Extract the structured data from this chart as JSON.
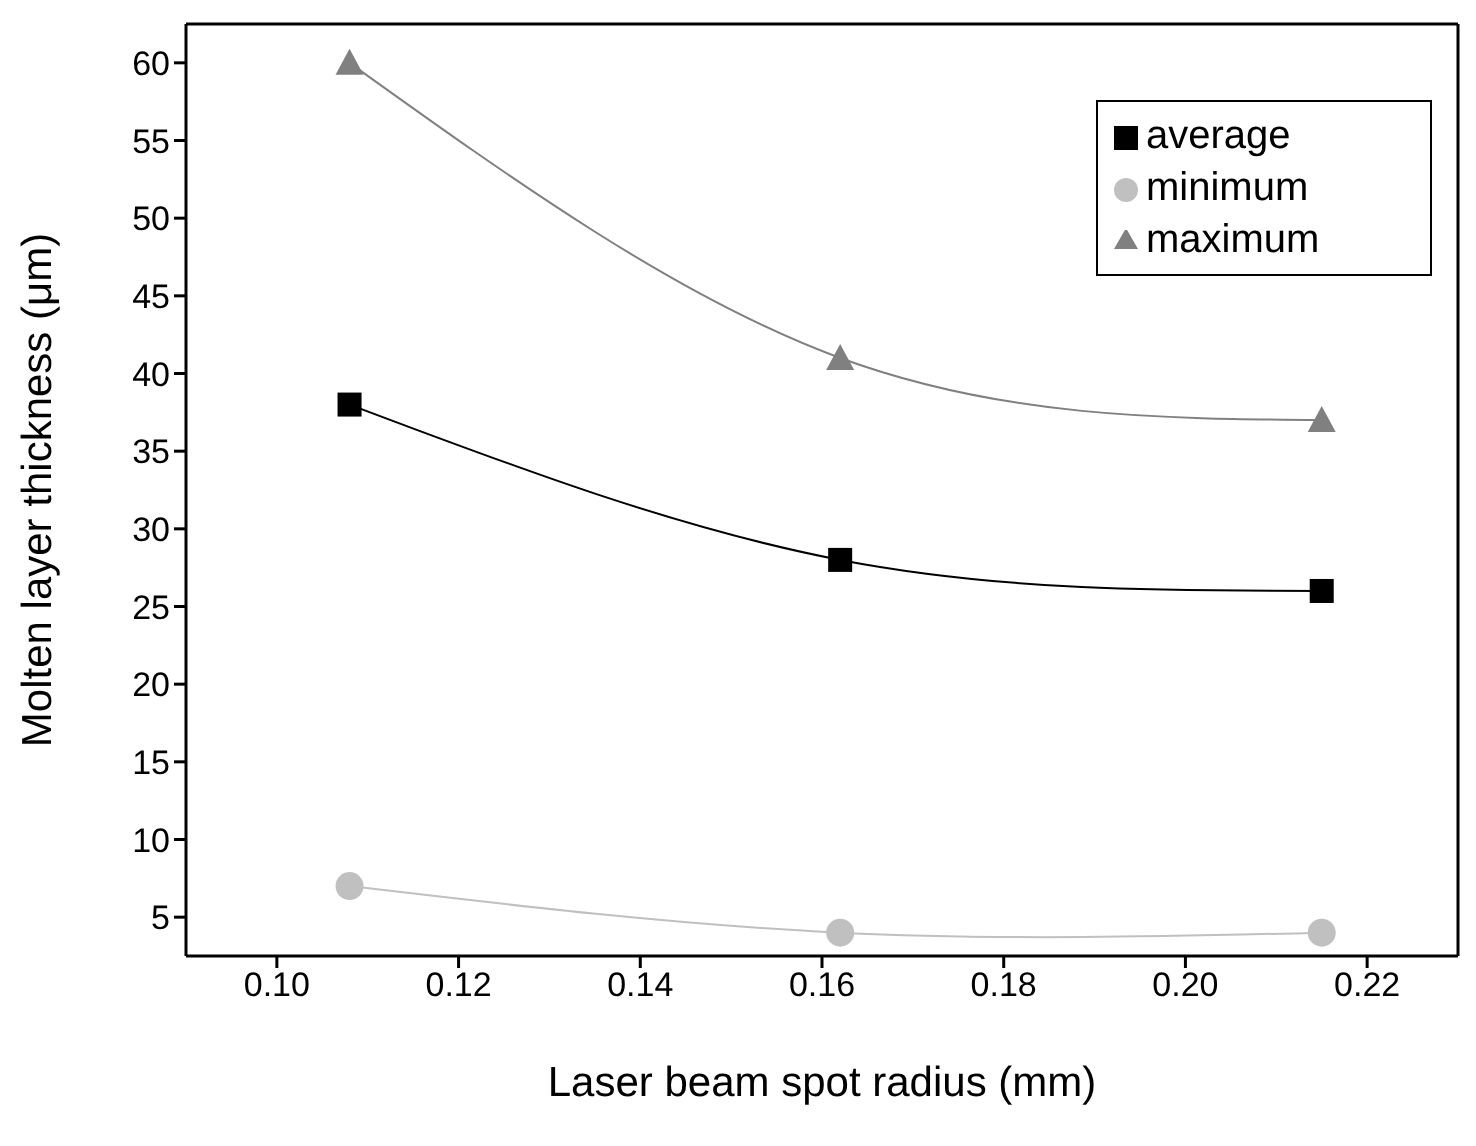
{
  "chart_data": {
    "type": "line",
    "xlabel": "Laser beam spot radius (mm)",
    "ylabel": "Molten layer thickness (μm)",
    "x": [
      0.108,
      0.162,
      0.215
    ],
    "series": [
      {
        "name": "average",
        "color": "#000000",
        "marker": "square",
        "values": [
          38,
          28,
          26
        ]
      },
      {
        "name": "minimum",
        "color": "#c0c0c0",
        "marker": "circle",
        "values": [
          7,
          4,
          4
        ]
      },
      {
        "name": "maximum",
        "color": "#808080",
        "marker": "triangle",
        "values": [
          60,
          41,
          37
        ]
      }
    ],
    "xlim": [
      0.09,
      0.23
    ],
    "xticks": [
      {
        "value": 0.1,
        "label": "0.10"
      },
      0.12,
      0.14,
      0.16,
      0.18,
      {
        "value": 0.2,
        "label": "0.20"
      },
      0.22
    ],
    "ylim": [
      2.5,
      62.5
    ],
    "yticks": [
      5,
      10,
      15,
      20,
      25,
      30,
      35,
      40,
      45,
      50,
      55,
      60
    ],
    "grid": false,
    "legend": "top right"
  }
}
